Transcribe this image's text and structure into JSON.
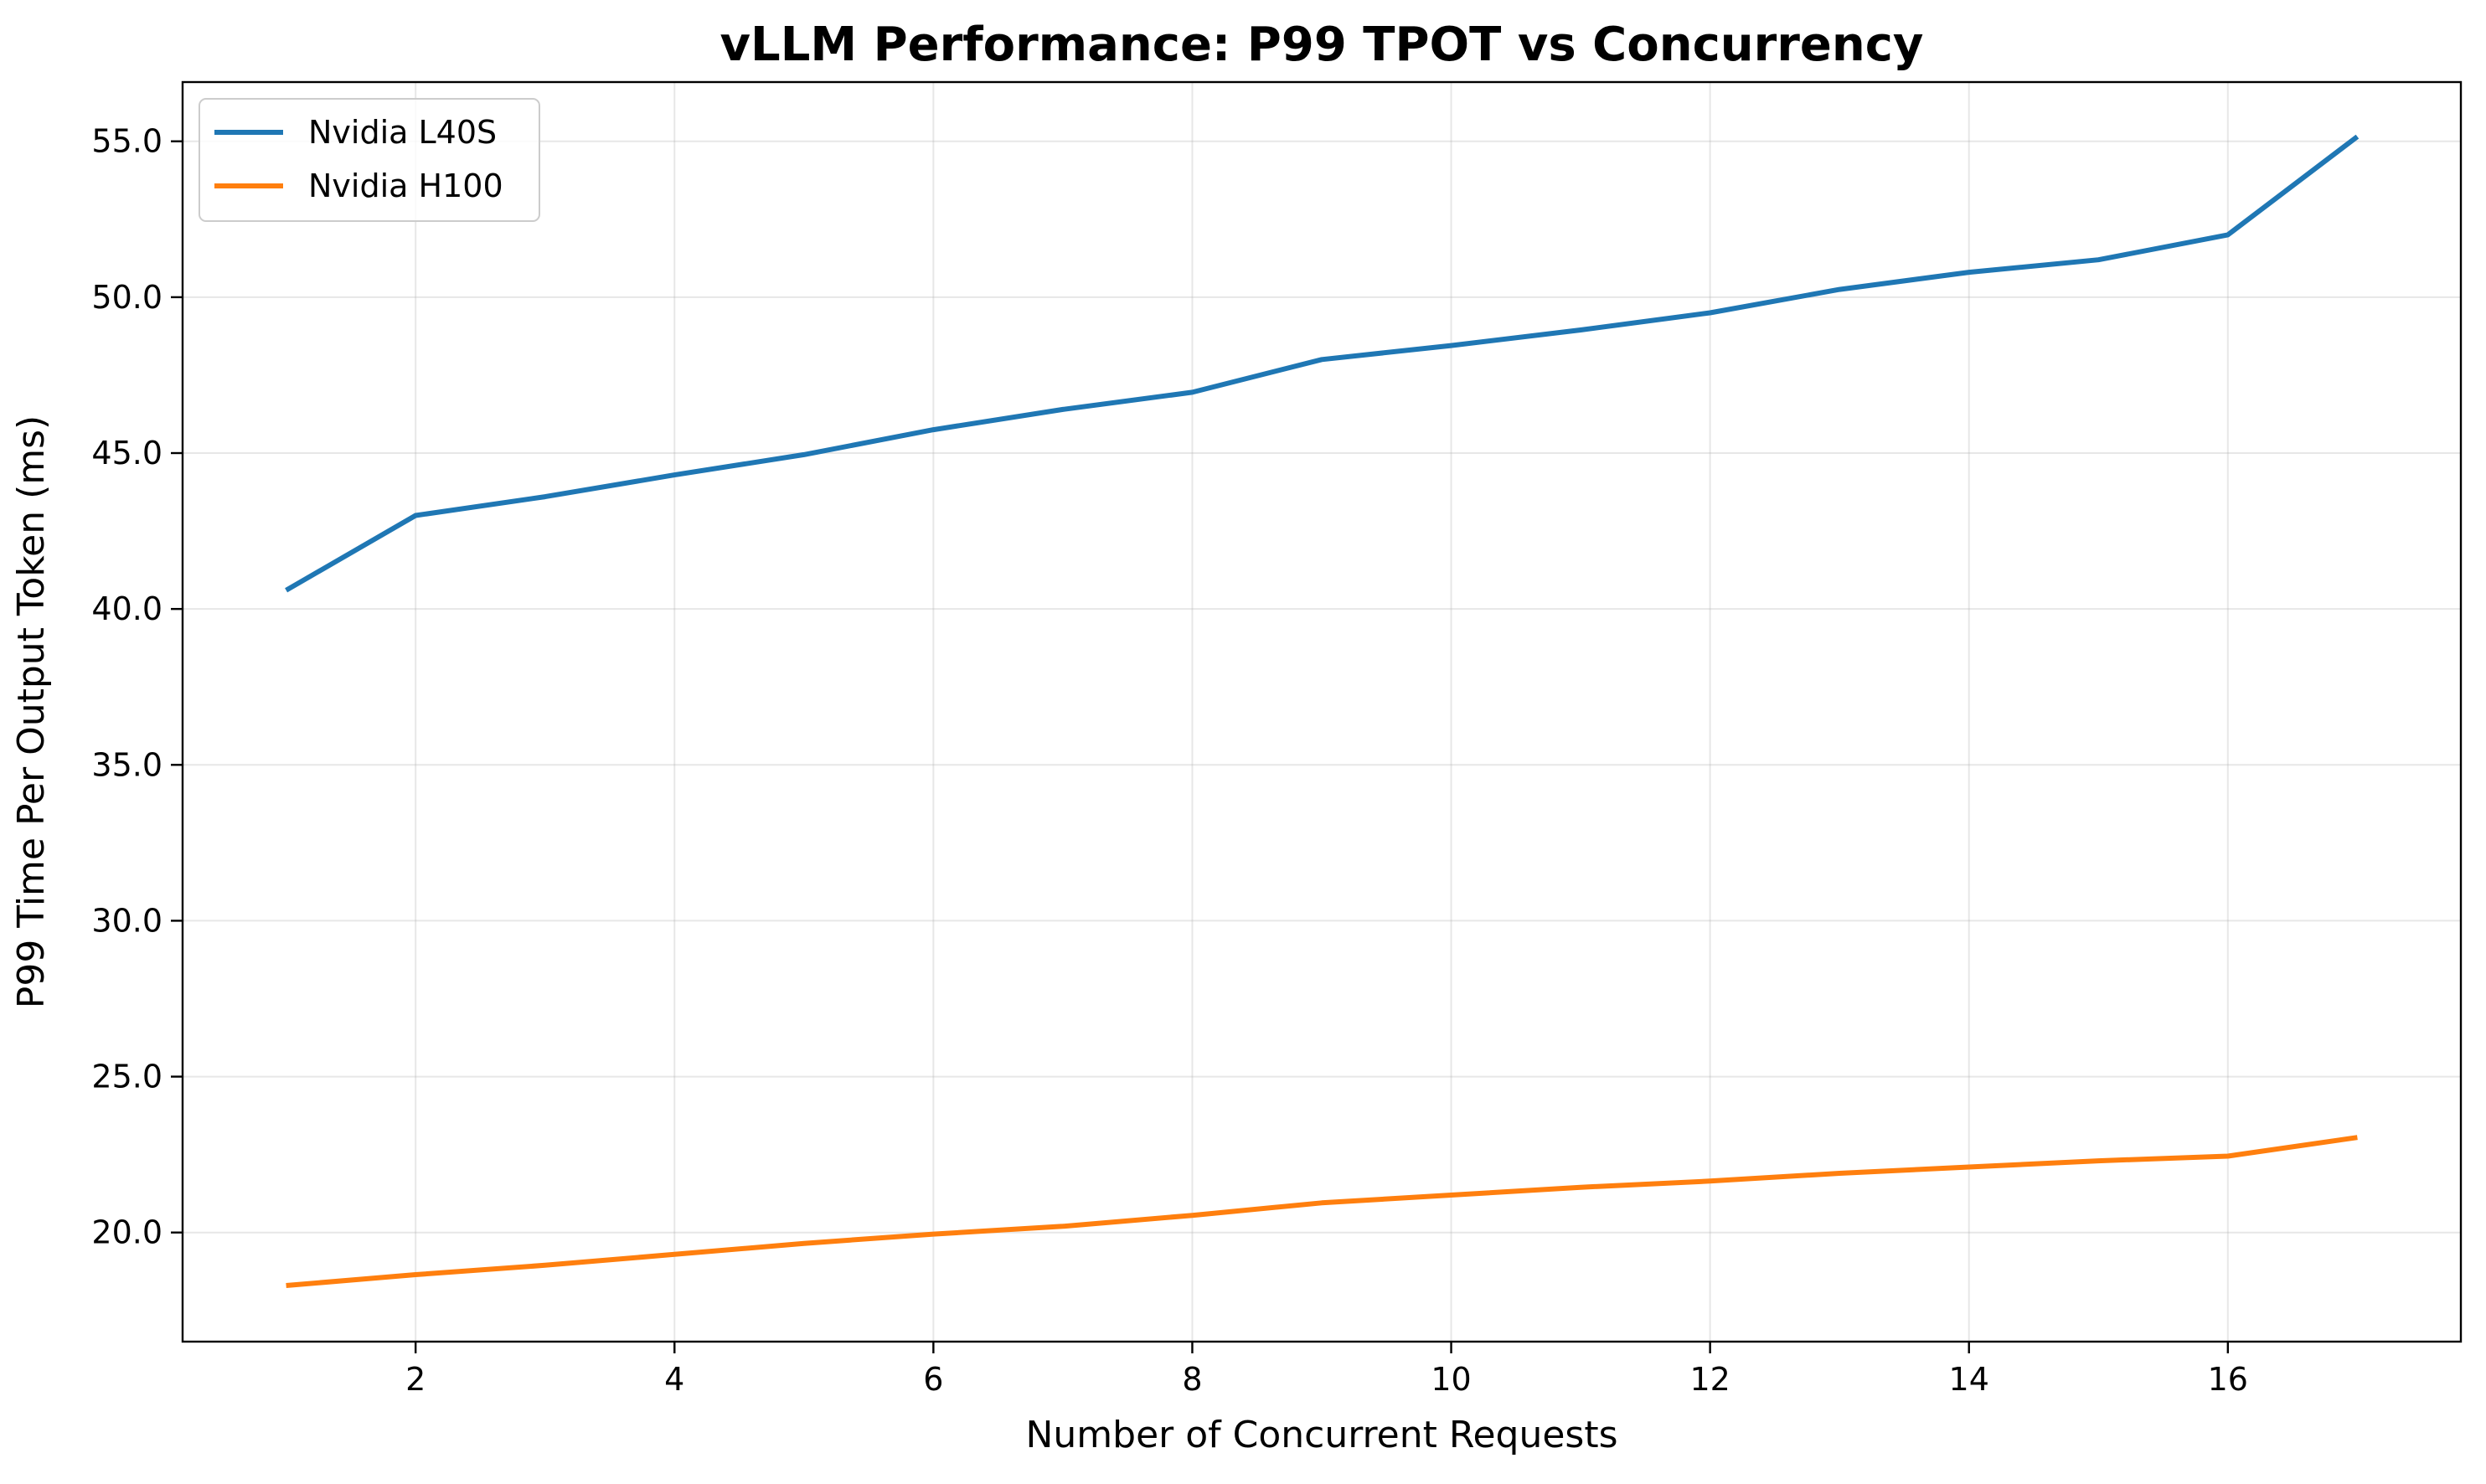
{
  "chart_data": {
    "type": "line",
    "title": "vLLM Performance: P99 TPOT vs Concurrency",
    "xlabel": "Number of Concurrent Requests",
    "ylabel": "P99 Time Per Output Token (ms)",
    "xlim": [
      0.2,
      17.8
    ],
    "ylim": [
      16.5,
      56.9
    ],
    "xticks": [
      2,
      4,
      6,
      8,
      10,
      12,
      14,
      16
    ],
    "xtick_labels": [
      "2",
      "4",
      "6",
      "8",
      "10",
      "12",
      "14",
      "16"
    ],
    "yticks": [
      20,
      25,
      30,
      35,
      40,
      45,
      50,
      55
    ],
    "ytick_labels": [
      "20.0",
      "25.0",
      "30.0",
      "35.0",
      "40.0",
      "45.0",
      "50.0",
      "55.0"
    ],
    "grid": true,
    "legend_position": "top-left",
    "x": [
      1,
      2,
      3,
      4,
      5,
      6,
      7,
      8,
      9,
      10,
      11,
      12,
      13,
      14,
      15,
      16,
      17
    ],
    "series": [
      {
        "name": "Nvidia L40S",
        "color": "#1f77b4",
        "values": [
          40.6,
          43.0,
          43.6,
          44.3,
          44.95,
          45.75,
          46.4,
          46.95,
          48.0,
          48.45,
          48.95,
          49.5,
          50.25,
          50.8,
          51.2,
          52.0,
          55.15
        ]
      },
      {
        "name": "Nvidia H100",
        "color": "#ff7f0e",
        "values": [
          18.3,
          18.65,
          18.95,
          19.3,
          19.65,
          19.95,
          20.2,
          20.55,
          20.95,
          21.2,
          21.45,
          21.65,
          21.9,
          22.1,
          22.3,
          22.45,
          23.05
        ]
      }
    ]
  }
}
